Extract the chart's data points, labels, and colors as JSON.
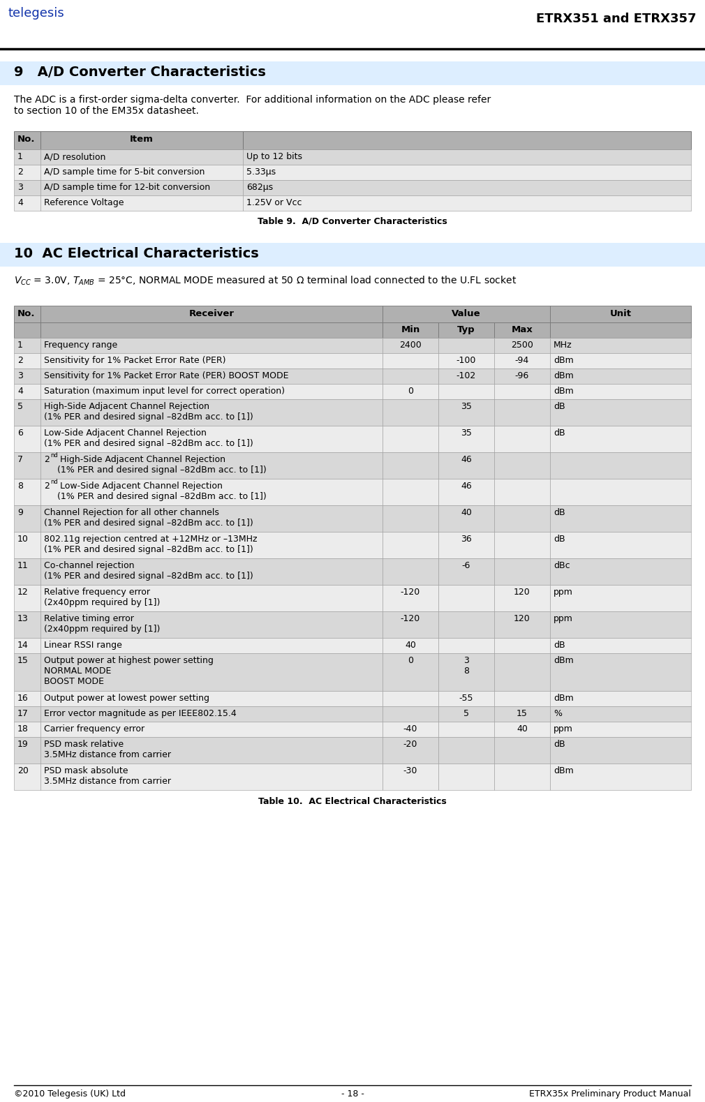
{
  "header_title": "ETRX351 and ETRX357",
  "footer_left": "©2010 Telegesis (UK) Ltd",
  "footer_center": "- 18 -",
  "footer_right": "ETRX35x Preliminary Product Manual",
  "section9_title": "9   A/D Converter Characteristics",
  "section9_body": "The ADC is a first-order sigma-delta converter.  For additional information on the ADC please refer\nto section 10 of the EM35x datasheet.",
  "table9_caption": "Table 9.  A/D Converter Characteristics",
  "table9_rows": [
    [
      "1",
      "A/D resolution",
      "Up to 12 bits"
    ],
    [
      "2",
      "A/D sample time for 5-bit conversion",
      "5.33μs"
    ],
    [
      "3",
      "A/D sample time for 12-bit conversion",
      "682μs"
    ],
    [
      "4",
      "Reference Voltage",
      "1.25V or Vcc"
    ]
  ],
  "section10_title": "10  AC Electrical Characteristics",
  "table10_caption": "Table 10.  AC Electrical Characteristics",
  "table10_rows": [
    [
      "1",
      "Frequency range",
      "2400",
      "",
      "2500",
      "MHz"
    ],
    [
      "2",
      "Sensitivity for 1% Packet Error Rate (PER)",
      "",
      "-100",
      "-94",
      "dBm"
    ],
    [
      "3",
      "Sensitivity for 1% Packet Error Rate (PER) BOOST MODE",
      "",
      "-102",
      "-96",
      "dBm"
    ],
    [
      "4",
      "Saturation (maximum input level for correct operation)",
      "0",
      "",
      "",
      "dBm"
    ],
    [
      "5",
      "High-Side Adjacent Channel Rejection\n(1% PER and desired signal –82dBm acc. to [1])",
      "",
      "35",
      "",
      "dB"
    ],
    [
      "6",
      "Low-Side Adjacent Channel Rejection\n(1% PER and desired signal –82dBm acc. to [1])",
      "",
      "35",
      "",
      "dB"
    ],
    [
      "7",
      "2^{nd} High-Side Adjacent Channel Rejection\n(1% PER and desired signal –82dBm acc. to [1])",
      "",
      "46",
      "",
      ""
    ],
    [
      "8",
      "2^{nd} Low-Side Adjacent Channel Rejection\n(1% PER and desired signal –82dBm acc. to [1])",
      "",
      "46",
      "",
      ""
    ],
    [
      "9",
      "Channel Rejection for all other channels\n(1% PER and desired signal –82dBm acc. to [1])",
      "",
      "40",
      "",
      "dB"
    ],
    [
      "10",
      "802.11g rejection centred at +12MHz or –13MHz\n(1% PER and desired signal –82dBm acc. to [1])",
      "",
      "36",
      "",
      "dB"
    ],
    [
      "11",
      "Co-channel rejection\n(1% PER and desired signal –82dBm acc. to [1])",
      "",
      "-6",
      "",
      "dBc"
    ],
    [
      "12",
      "Relative frequency error\n(2x40ppm required by [1])",
      "-120",
      "",
      "120",
      "ppm"
    ],
    [
      "13",
      "Relative timing error\n(2x40ppm required by [1])",
      "-120",
      "",
      "120",
      "ppm"
    ],
    [
      "14",
      "Linear RSSI range",
      "40",
      "",
      "",
      "dB"
    ],
    [
      "15",
      "Output power at highest power setting\nNORMAL MODE\nBOOST MODE",
      "0",
      "3\n8",
      "",
      "dBm"
    ],
    [
      "16",
      "Output power at lowest power setting",
      "",
      "-55",
      "",
      "dBm"
    ],
    [
      "17",
      "Error vector magnitude as per IEEE802.15.4",
      "",
      "5",
      "15",
      "%"
    ],
    [
      "18",
      "Carrier frequency error",
      "-40",
      "",
      "40",
      "ppm"
    ],
    [
      "19",
      "PSD mask relative\n3.5MHz distance from carrier",
      "-20",
      "",
      "",
      "dB"
    ],
    [
      "20",
      "PSD mask absolute\n3.5MHz distance from carrier",
      "-30",
      "",
      "",
      "dBm"
    ]
  ],
  "bg_color": "#ffffff",
  "table_header_bg": "#b0b0b0",
  "table_row_even_bg": "#d8d8d8",
  "table_row_odd_bg": "#ececec",
  "section_header_bg": "#ddeeff",
  "header_line_color": "#000000"
}
